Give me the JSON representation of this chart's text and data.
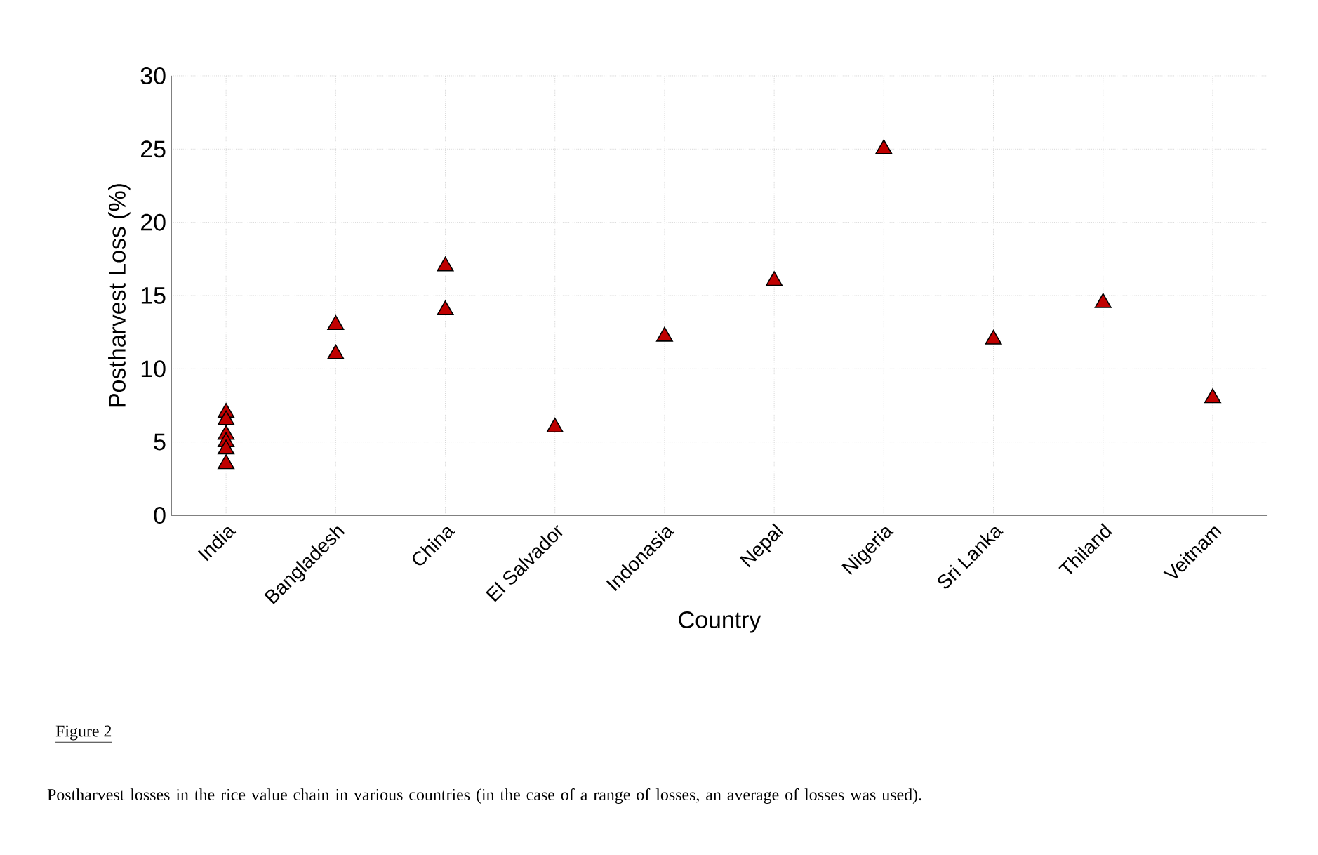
{
  "chart_data": {
    "type": "scatter",
    "xlabel": "Country",
    "ylabel": "Postharvest Loss (%)",
    "categories": [
      "India",
      "Bangladesh",
      "China",
      "El Salvador",
      "Indonasia",
      "Nepal",
      "Nigeria",
      "Sri Lanka",
      "Thiland",
      "Veitnam"
    ],
    "series": [
      {
        "color": "#c00000",
        "x": [
          "India",
          "India",
          "India",
          "India",
          "India",
          "India",
          "Bangladesh",
          "Bangladesh",
          "China",
          "China",
          "El Salvador",
          "Indonasia",
          "Nepal",
          "Nigeria",
          "Sri Lanka",
          "Thiland",
          "Veitnam"
        ],
        "values": [
          7,
          6.5,
          5.5,
          5,
          4.5,
          3.5,
          13,
          11,
          17,
          14,
          6,
          12.2,
          16,
          25,
          12,
          14.5,
          8
        ]
      }
    ],
    "ylim": [
      0,
      30
    ],
    "yticks": [
      0,
      5,
      10,
      15,
      20,
      25,
      30
    ],
    "grid": true,
    "marker": "triangle",
    "annotations": [
      "Figure 2",
      "Postharvest losses in the rice value chain in various countries (in the case of a range of losses, an average of losses was used)."
    ]
  }
}
